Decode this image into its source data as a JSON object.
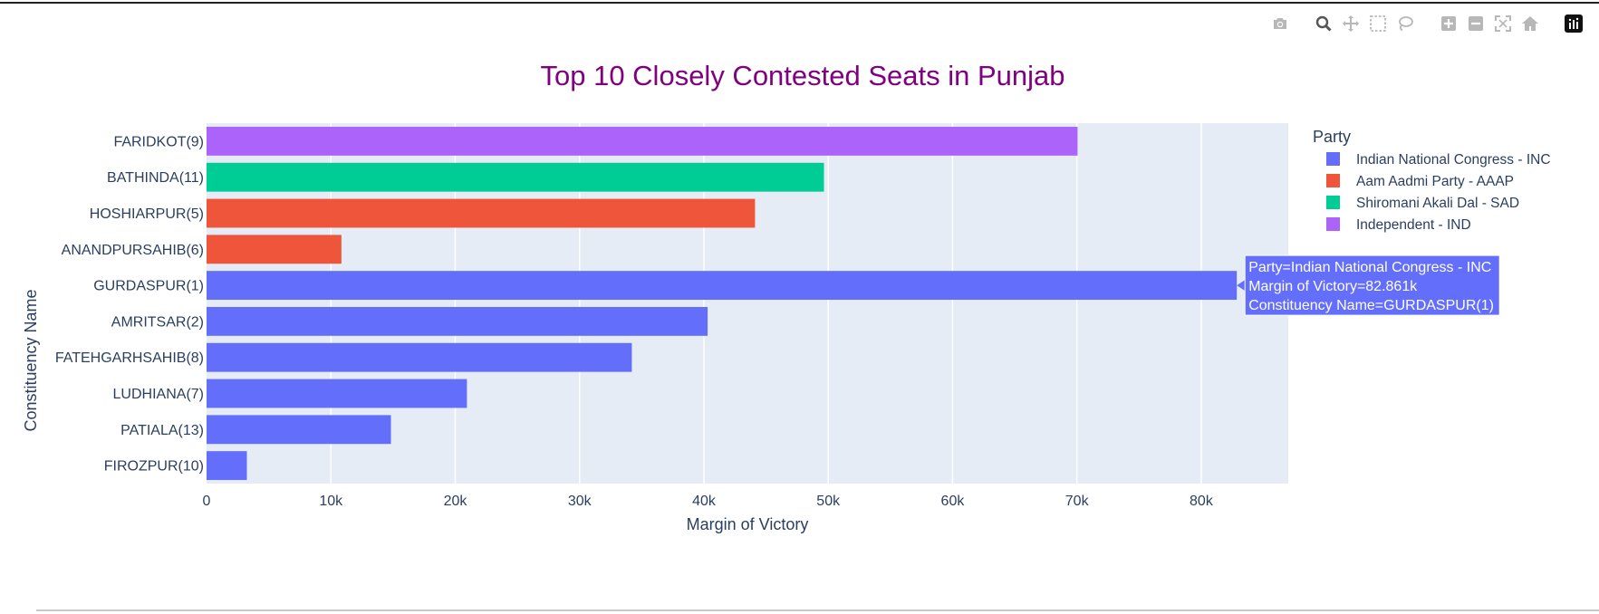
{
  "modebar": {
    "icons": [
      "camera-icon",
      "zoom-icon",
      "pan-icon",
      "box-select-icon",
      "lasso-select-icon",
      "zoom-in-icon",
      "zoom-out-icon",
      "autoscale-icon",
      "reset-axes-icon",
      "plotly-logo-icon"
    ]
  },
  "chart_data": {
    "type": "bar",
    "orientation": "horizontal",
    "title": "Top 10 Closely Contested Seats in Punjab",
    "xlabel": "Margin of Victory",
    "ylabel": "Constituency Name",
    "xlim": [
      0,
      87000
    ],
    "xticks": [
      0,
      10000,
      20000,
      30000,
      40000,
      50000,
      60000,
      70000,
      80000
    ],
    "xtick_labels": [
      "0",
      "10k",
      "20k",
      "30k",
      "40k",
      "50k",
      "60k",
      "70k",
      "80k"
    ],
    "grid": true,
    "categories": [
      "FARIDKOT(9)",
      "BATHINDA(11)",
      "HOSHIARPUR(5)",
      "ANANDPURSAHIB(6)",
      "GURDASPUR(1)",
      "AMRITSAR(2)",
      "FATEHGARHSAHIB(8)",
      "LUDHIANA(7)",
      "PATIALA(13)",
      "FIROZPUR(10)"
    ],
    "values": [
      70053,
      49656,
      44111,
      10846,
      82861,
      40301,
      34202,
      20942,
      14831,
      3242
    ],
    "party_of_bar": [
      "Independent - IND",
      "Shiromani Akali Dal - SAD",
      "Aam Aadmi Party - AAAP",
      "Aam Aadmi Party - AAAP",
      "Indian National Congress - INC",
      "Indian National Congress - INC",
      "Indian National Congress - INC",
      "Indian National Congress - INC",
      "Indian National Congress - INC",
      "Indian National Congress - INC"
    ],
    "legend": {
      "title": "Party",
      "placement": "right",
      "entries": [
        {
          "name": "Indian National Congress - INC",
          "color": "#636efa"
        },
        {
          "name": "Aam Aadmi Party - AAAP",
          "color": "#ef553b"
        },
        {
          "name": "Shiromani Akali Dal - SAD",
          "color": "#00cc96"
        },
        {
          "name": "Independent - IND",
          "color": "#ab63fa"
        }
      ]
    },
    "plot_background": "#e5ecf6",
    "tooltip": {
      "category": "GURDASPUR(1)",
      "lines": [
        "Party=Indian National Congress - INC",
        "Margin of Victory=82.861k",
        "Constituency Name=GURDASPUR(1)"
      ]
    }
  }
}
